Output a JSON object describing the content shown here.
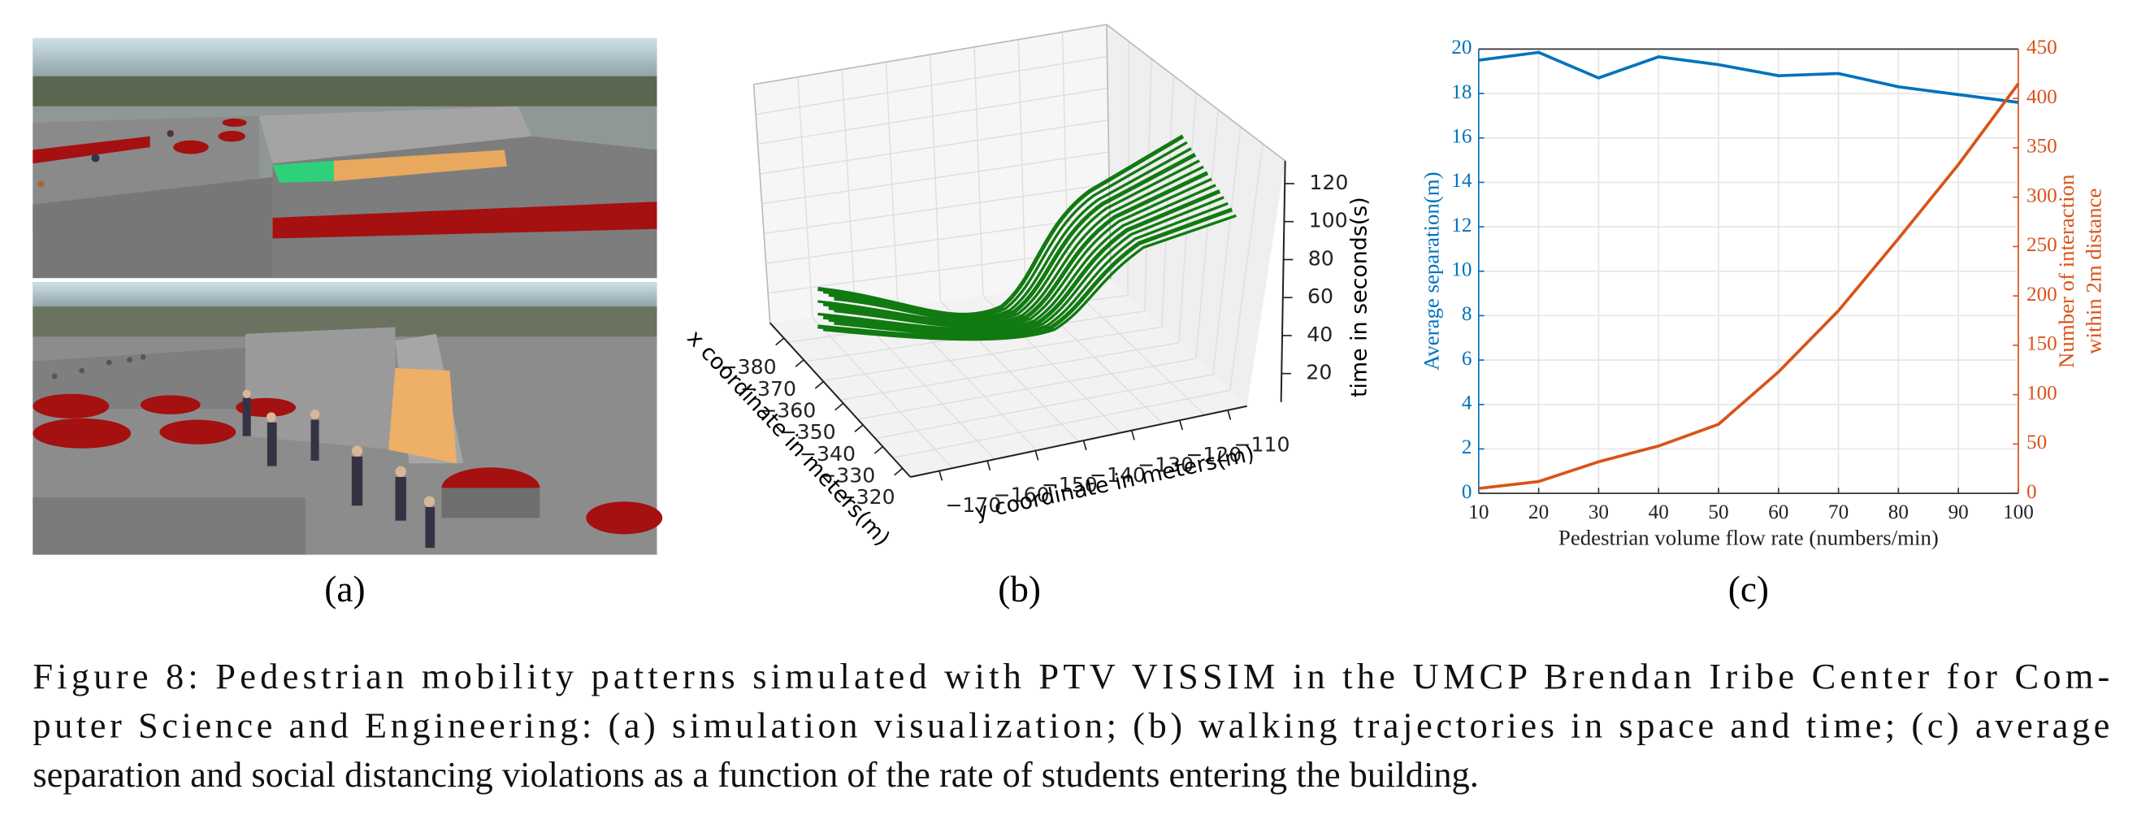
{
  "panels": {
    "a": {
      "label": "(a)"
    },
    "b": {
      "label": "(b)"
    },
    "c": {
      "label": "(c)"
    }
  },
  "chart_data": [
    {
      "type": "line3d",
      "color": "#117a11",
      "xlabel": "x coordinate in meters(m)",
      "ylabel": "y coordinate in meters(m)",
      "zlabel": "time in seconds(s)",
      "xlim": [
        -387,
        -316
      ],
      "xticks": [
        {
          "value": -380,
          "label": "−380"
        },
        {
          "value": -370,
          "label": "−370"
        },
        {
          "value": -360,
          "label": "−360"
        },
        {
          "value": -350,
          "label": "−350"
        },
        {
          "value": -340,
          "label": "−340"
        },
        {
          "value": -330,
          "label": "−330"
        },
        {
          "value": -320,
          "label": "−320"
        }
      ],
      "ylim": [
        -176,
        -106
      ],
      "yticks": [
        {
          "value": -170,
          "label": "−170"
        },
        {
          "value": -160,
          "label": "−160"
        },
        {
          "value": -150,
          "label": "−150"
        },
        {
          "value": -140,
          "label": "−140"
        },
        {
          "value": -130,
          "label": "−130"
        },
        {
          "value": -120,
          "label": "−120"
        },
        {
          "value": -110,
          "label": "−110"
        }
      ],
      "zlim": [
        5,
        132
      ],
      "zticks": [
        20,
        40,
        60,
        80,
        100,
        120
      ]
    },
    {
      "type": "line",
      "grid": true,
      "xlabel": "Pedestrian volume flow rate (numbers/min)",
      "ylabel": "Average separation(m)",
      "ylabel2": [
        "Number of interaction",
        "within 2m distance"
      ],
      "x": [
        10,
        20,
        30,
        40,
        50,
        60,
        70,
        80,
        90,
        100
      ],
      "xlim": [
        10,
        100
      ],
      "xticks": [
        10,
        20,
        30,
        40,
        50,
        60,
        70,
        80,
        90,
        100
      ],
      "ylim": [
        0,
        20
      ],
      "yticks": [
        0,
        2,
        4,
        6,
        8,
        10,
        12,
        14,
        16,
        18,
        20
      ],
      "y2lim": [
        0,
        450
      ],
      "y2ticks": [
        0,
        50,
        100,
        150,
        200,
        250,
        300,
        350,
        400,
        450
      ],
      "series": [
        {
          "color": "#0072bd",
          "axis": "y",
          "values": [
            19.5,
            19.85,
            18.7,
            19.65,
            19.3,
            18.8,
            18.9,
            18.3,
            17.95,
            17.6
          ]
        },
        {
          "color": "#d95319",
          "axis": "y2",
          "values": [
            5,
            12,
            32,
            48,
            70,
            123,
            185,
            258,
            333,
            415
          ]
        }
      ]
    }
  ],
  "caption": [
    "Figure 8: Pedestrian mobility patterns simulated with PTV VISSIM in the UMCP Brendan Iribe Center for Com-",
    "puter Science and Engineering: (a) simulation visualization; (b) walking trajectories in space and time; (c) average",
    "separation and social distancing violations as a function of the rate of students entering the building."
  ]
}
